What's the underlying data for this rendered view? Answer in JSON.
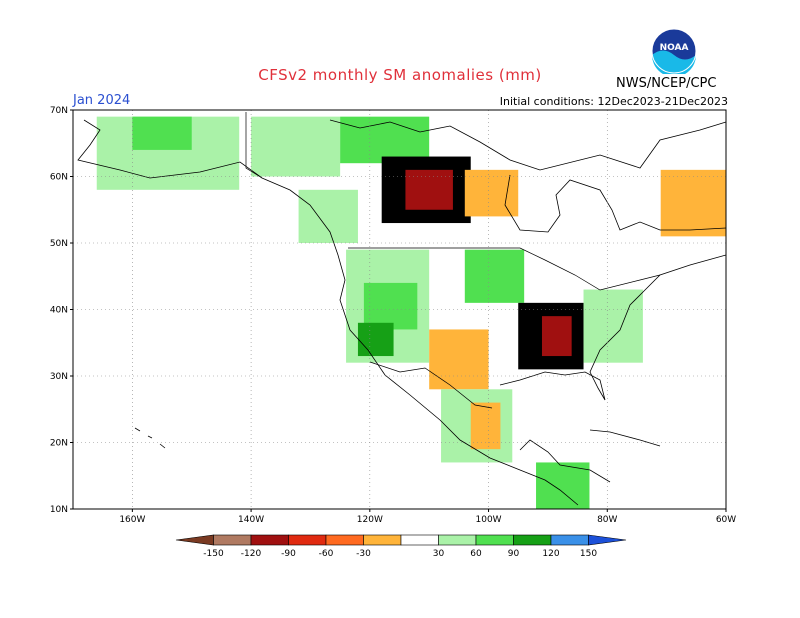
{
  "title": "CFSv2 monthly SM anomalies (mm)",
  "month": "Jan 2024",
  "initial_conditions": "Initial conditions: 12Dec2023-21Dec2023",
  "agency": "NWS/NCEP/CPC",
  "logo_text": "NOAA",
  "map": {
    "lon_range": [
      -170,
      -60
    ],
    "lat_range": [
      10,
      70
    ],
    "lat_ticks": [
      {
        "value": 70,
        "label": "70N"
      },
      {
        "value": 60,
        "label": "60N"
      },
      {
        "value": 50,
        "label": "50N"
      },
      {
        "value": 40,
        "label": "40N"
      },
      {
        "value": 30,
        "label": "30N"
      },
      {
        "value": 20,
        "label": "20N"
      },
      {
        "value": 10,
        "label": "10N"
      }
    ],
    "lon_ticks": [
      {
        "value": -160,
        "label": "160W"
      },
      {
        "value": -140,
        "label": "140W"
      },
      {
        "value": -120,
        "label": "120W"
      },
      {
        "value": -100,
        "label": "100W"
      },
      {
        "value": -80,
        "label": "80W"
      },
      {
        "value": -60,
        "label": "60W"
      }
    ],
    "grid": "dotted",
    "regions": [
      {
        "name": "alaska-interior",
        "lon": [
          -166,
          -142
        ],
        "lat": [
          58,
          69
        ],
        "class": "30"
      },
      {
        "name": "alaska-interior-wet",
        "lon": [
          -160,
          -150
        ],
        "lat": [
          64,
          69
        ],
        "class": "60"
      },
      {
        "name": "yukon",
        "lon": [
          -140,
          -125
        ],
        "lat": [
          60,
          69
        ],
        "class": "30"
      },
      {
        "name": "nw-territories",
        "lon": [
          -125,
          -110
        ],
        "lat": [
          62,
          69
        ],
        "class": "60"
      },
      {
        "name": "canada-dry-core",
        "lon": [
          -118,
          -103
        ],
        "lat": [
          53,
          63
        ],
        "class": "-80"
      },
      {
        "name": "canada-dry-inner",
        "lon": [
          -114,
          -106
        ],
        "lat": [
          55,
          61
        ],
        "class": "-120"
      },
      {
        "name": "canada-dry-edge",
        "lon": [
          -104,
          -95
        ],
        "lat": [
          54,
          61
        ],
        "class": "-30"
      },
      {
        "name": "quebec-dry",
        "lon": [
          -71,
          -60
        ],
        "lat": [
          51,
          61
        ],
        "class": "-30"
      },
      {
        "name": "bc-coast",
        "lon": [
          -132,
          -122
        ],
        "lat": [
          50,
          58
        ],
        "class": "30"
      },
      {
        "name": "us-west",
        "lon": [
          -124,
          -110
        ],
        "lat": [
          32,
          49
        ],
        "class": "30"
      },
      {
        "name": "northwest-wet",
        "lon": [
          -121,
          -112
        ],
        "lat": [
          37,
          44
        ],
        "class": "60"
      },
      {
        "name": "california-wet",
        "lon": [
          -122,
          -116
        ],
        "lat": [
          33,
          38
        ],
        "class": "90"
      },
      {
        "name": "plains-dry",
        "lon": [
          -110,
          -100
        ],
        "lat": [
          28,
          37
        ],
        "class": "-30"
      },
      {
        "name": "midwest-wet",
        "lon": [
          -104,
          -94
        ],
        "lat": [
          41,
          49
        ],
        "class": "60"
      },
      {
        "name": "southeast-dry",
        "lon": [
          -95,
          -84
        ],
        "lat": [
          31,
          41
        ],
        "class": "-80"
      },
      {
        "name": "southeast-core",
        "lon": [
          -91,
          -86
        ],
        "lat": [
          33,
          39
        ],
        "class": "-120"
      },
      {
        "name": "east-wet",
        "lon": [
          -84,
          -74
        ],
        "lat": [
          32,
          43
        ],
        "class": "30"
      },
      {
        "name": "mexico",
        "lon": [
          -108,
          -96
        ],
        "lat": [
          17,
          28
        ],
        "class": "30"
      },
      {
        "name": "mexico-dry",
        "lon": [
          -103,
          -98
        ],
        "lat": [
          19,
          26
        ],
        "class": "-30"
      },
      {
        "name": "central-america",
        "lon": [
          -92,
          -83
        ],
        "lat": [
          10,
          17
        ],
        "class": "60"
      }
    ]
  },
  "colorbar": {
    "labels": [
      "-150",
      "-120",
      "-90",
      "-60",
      "-30",
      "30",
      "60",
      "90",
      "120",
      "150"
    ],
    "colors": {
      "lt-150": "#7a3a22",
      "-150": "#b07a62",
      "-120": "#a01010",
      "-90": "#e02a10",
      "-60": "#ff6a20",
      "-30": "#ffb43a",
      "0": "#ffffff",
      "30": "#aaf2a8",
      "60": "#50e050",
      "90": "#16a016",
      "120": "#3a90e8",
      "gt-150": "#1c50d8"
    }
  }
}
